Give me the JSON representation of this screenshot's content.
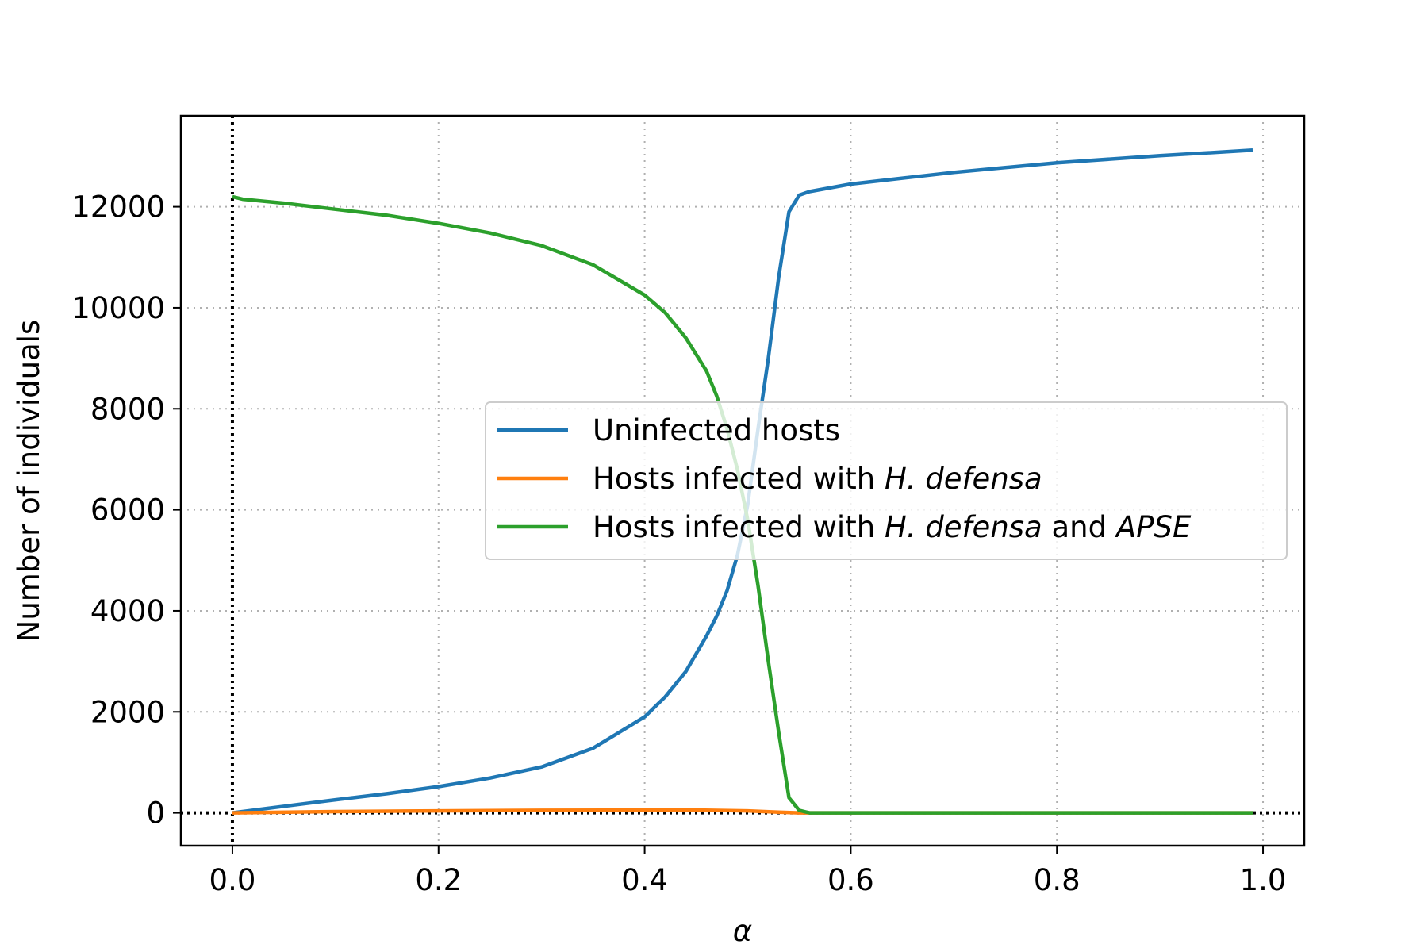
{
  "chart_data": {
    "type": "line",
    "xlabel": "α",
    "ylabel": "Number of individuals",
    "xlim": [
      -0.05,
      1.04
    ],
    "ylim": [
      -650,
      13800
    ],
    "xticks": [
      0.0,
      0.2,
      0.4,
      0.6,
      0.8,
      1.0
    ],
    "xtick_labels": [
      "0.0",
      "0.2",
      "0.4",
      "0.6",
      "0.8",
      "1.0"
    ],
    "yticks": [
      0,
      2000,
      4000,
      6000,
      8000,
      10000,
      12000
    ],
    "ytick_labels": [
      "0",
      "2000",
      "4000",
      "6000",
      "8000",
      "10000",
      "12000"
    ],
    "grid": true,
    "legend_position": "center-right",
    "reference_lines": {
      "vertical_x": 0.0,
      "horizontal_y": 0
    },
    "series": [
      {
        "name": "Uninfected hosts",
        "color": "#1f77b4",
        "x": [
          0.0,
          0.05,
          0.1,
          0.15,
          0.2,
          0.25,
          0.3,
          0.35,
          0.4,
          0.42,
          0.44,
          0.46,
          0.47,
          0.48,
          0.49,
          0.5,
          0.51,
          0.52,
          0.53,
          0.54,
          0.55,
          0.56,
          0.6,
          0.7,
          0.8,
          0.9,
          0.99
        ],
        "y": [
          0,
          130,
          260,
          380,
          520,
          690,
          910,
          1280,
          1900,
          2300,
          2800,
          3500,
          3900,
          4400,
          5100,
          6100,
          7600,
          9000,
          10600,
          11900,
          12230,
          12300,
          12450,
          12680,
          12870,
          13010,
          13120
        ]
      },
      {
        "name": "Hosts infected with H. defensa",
        "name_parts": [
          "Hosts infected with ",
          "H. defensa",
          ""
        ],
        "color": "#ff7f0e",
        "x": [
          0.0,
          0.1,
          0.2,
          0.3,
          0.4,
          0.45,
          0.5,
          0.53,
          0.55,
          0.56,
          0.6,
          0.8,
          0.99
        ],
        "y": [
          0,
          25,
          40,
          50,
          55,
          55,
          40,
          15,
          0,
          0,
          0,
          0,
          0
        ]
      },
      {
        "name": "Hosts infected with H. defensa and APSE",
        "name_parts": [
          "Hosts infected with ",
          "H. defensa",
          " and ",
          "APSE"
        ],
        "color": "#2ca02c",
        "x": [
          0.0,
          0.01,
          0.05,
          0.1,
          0.15,
          0.2,
          0.25,
          0.3,
          0.35,
          0.4,
          0.42,
          0.44,
          0.46,
          0.47,
          0.48,
          0.49,
          0.5,
          0.51,
          0.52,
          0.53,
          0.54,
          0.55,
          0.56,
          0.6,
          0.7,
          0.8,
          0.9,
          0.99
        ],
        "y": [
          12200,
          12150,
          12070,
          11950,
          11830,
          11670,
          11480,
          11230,
          10850,
          10250,
          9900,
          9400,
          8750,
          8250,
          7600,
          6800,
          5800,
          4500,
          3000,
          1600,
          300,
          50,
          0,
          0,
          0,
          0,
          0,
          0
        ]
      }
    ]
  }
}
